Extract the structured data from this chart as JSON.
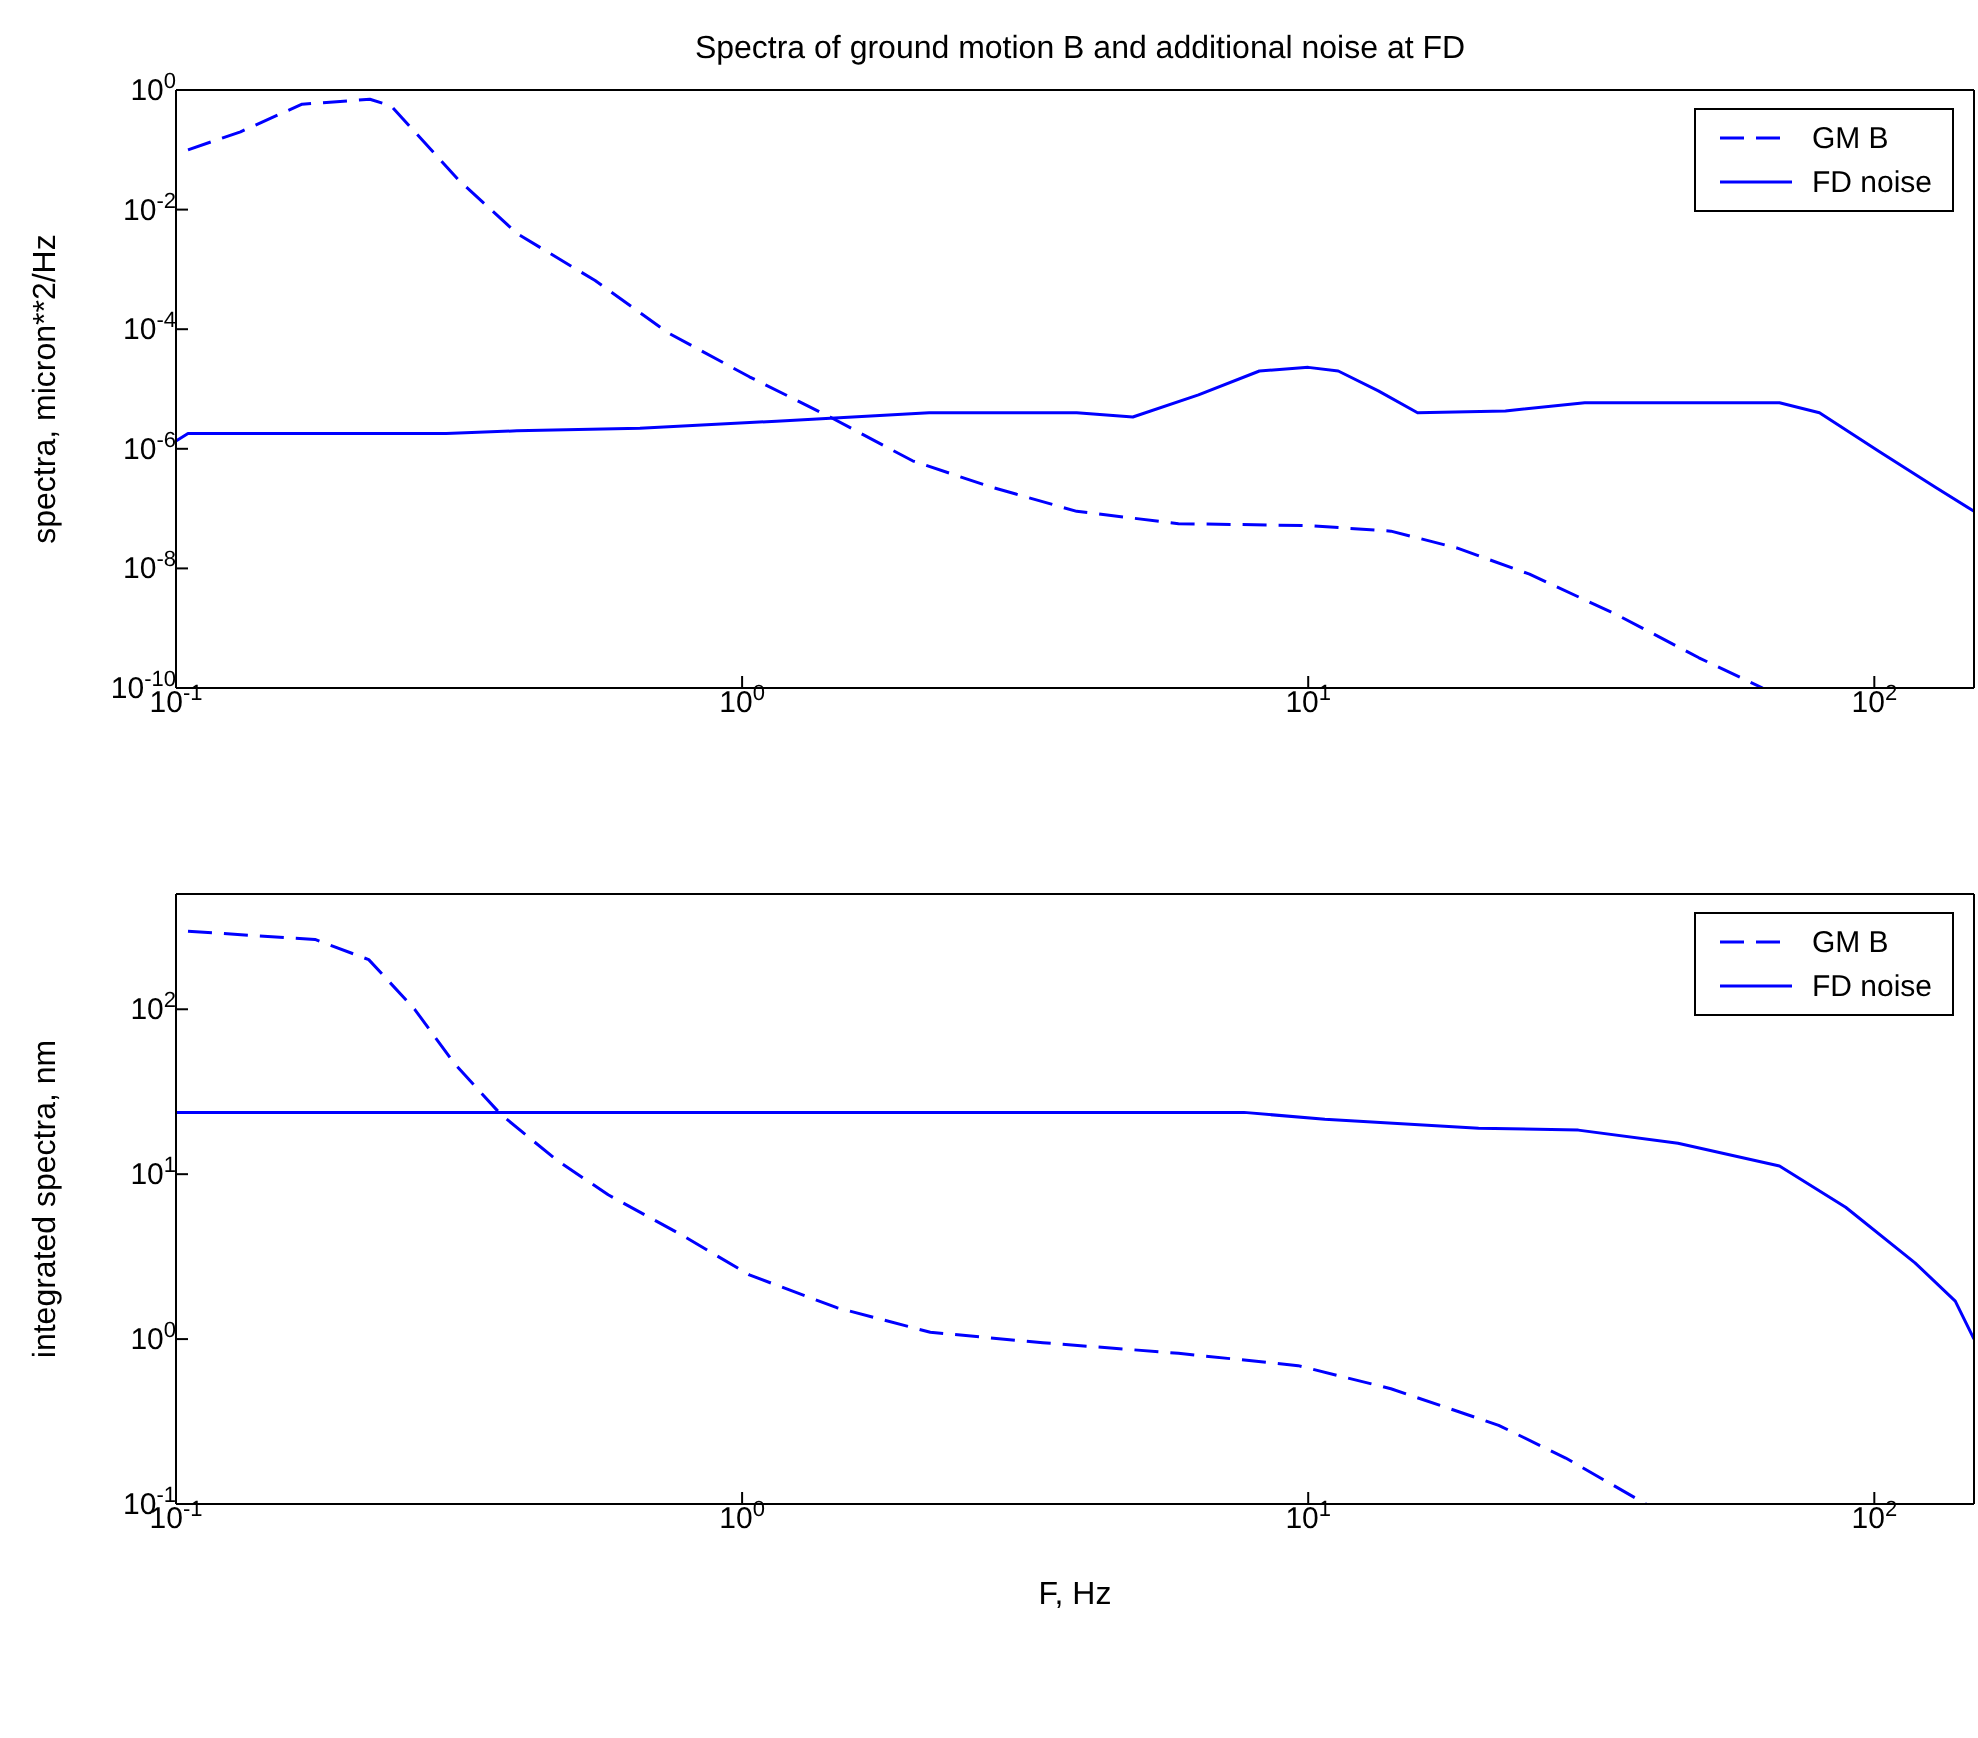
{
  "chart_data": [
    {
      "type": "line",
      "title": "Spectra of ground motion B and additional noise at FD",
      "ylabel": "spectra, micron**2/Hz",
      "log": "xy",
      "grid": false,
      "legend": "top right",
      "marker": "none",
      "xlim": [
        0.1,
        150
      ],
      "ylim": [
        1e-10,
        1
      ],
      "xticks": [
        {
          "value": 0.1,
          "label": "10$^{-1}$"
        },
        {
          "value": 1,
          "label": "10$^{0}$"
        },
        {
          "value": 10,
          "label": "10$^{1}$"
        },
        {
          "value": 100,
          "label": "10$^{2}$"
        }
      ],
      "yticks": [
        {
          "value": 1e-10,
          "label": "10$^{-10}$"
        },
        {
          "value": 1e-08,
          "label": "10$^{-8}$"
        },
        {
          "value": 1e-06,
          "label": "10$^{-6}$"
        },
        {
          "value": 0.0001,
          "label": "10$^{-4}$"
        },
        {
          "value": 0.01,
          "label": "10$^{-2}$"
        },
        {
          "value": 1,
          "label": "10$^{0}$"
        }
      ],
      "series": [
        {
          "name": "GM B",
          "color": "#0000ff",
          "line_style": "dashed",
          "x": [
            0.105,
            0.13,
            0.167,
            0.22,
            0.24,
            0.316,
            0.4,
            0.55,
            0.74,
            1.03,
            1.43,
            2.0,
            2.75,
            3.9,
            5.9,
            10,
            14,
            18.3,
            24.6,
            35,
            49,
            63.5
          ],
          "values": [
            0.1,
            0.2,
            0.58,
            0.7,
            0.54,
            0.031,
            0.004,
            0.00065,
            8.7e-05,
            1.6e-05,
            3.4e-06,
            6.3e-07,
            2.3e-07,
            9e-08,
            5.6e-08,
            5.2e-08,
            4.2e-08,
            2.2e-08,
            8e-09,
            1.7e-09,
            3.2e-10,
            1e-10
          ]
        },
        {
          "name": "FD noise",
          "color": "#0000ff",
          "line_style": "solid",
          "x": [
            0.1,
            0.105,
            0.3,
            0.4,
            0.66,
            1.15,
            2.14,
            3.9,
            4.9,
            6.4,
            8.2,
            10,
            11.3,
            13.3,
            15.6,
            22.3,
            30.8,
            68,
            80,
            102,
            128,
            150
          ],
          "values": [
            1.35e-06,
            1.8e-06,
            1.8e-06,
            2e-06,
            2.2e-06,
            2.9e-06,
            4e-06,
            4e-06,
            3.4e-06,
            8e-06,
            2e-05,
            2.3e-05,
            2e-05,
            9.3e-06,
            4e-06,
            4.3e-06,
            5.9e-06,
            5.9e-06,
            4e-06,
            9e-07,
            2.3e-07,
            9e-08
          ]
        }
      ]
    },
    {
      "type": "line",
      "xlabel": "F, Hz",
      "ylabel": "integrated spectra, nm",
      "log": "xy",
      "grid": false,
      "legend": "top right",
      "marker": "none",
      "xlim": [
        0.1,
        150
      ],
      "ylim": [
        0.1,
        500
      ],
      "xticks": [
        {
          "value": 0.1,
          "label": "10$^{-1}$"
        },
        {
          "value": 1,
          "label": "10$^{0}$"
        },
        {
          "value": 10,
          "label": "10$^{1}$"
        },
        {
          "value": 100,
          "label": "10$^{2}$"
        }
      ],
      "yticks": [
        {
          "value": 0.1,
          "label": "10$^{-1}$"
        },
        {
          "value": 1,
          "label": "10$^{0}$"
        },
        {
          "value": 10,
          "label": "10$^{1}$"
        },
        {
          "value": 100,
          "label": "10$^{2}$"
        }
      ],
      "series": [
        {
          "name": "GM B",
          "color": "#0000ff",
          "line_style": "dashed",
          "x": [
            0.105,
            0.176,
            0.219,
            0.264,
            0.31,
            0.375,
            0.47,
            0.58,
            0.78,
            1.03,
            1.47,
            2.15,
            3.4,
            5.9,
            9.6,
            14,
            21.7,
            28.5,
            39.5
          ],
          "values": [
            297,
            265,
            200,
            100,
            47,
            23,
            12.2,
            7.5,
            4.3,
            2.45,
            1.55,
            1.1,
            0.95,
            0.82,
            0.69,
            0.5,
            0.3,
            0.19,
            0.1
          ]
        },
        {
          "name": "FD noise",
          "color": "#0000ff",
          "line_style": "solid",
          "x": [
            0.1,
            7.7,
            10.7,
            20,
            30,
            45,
            68,
            89,
            118,
            139,
            150
          ],
          "values": [
            23.7,
            23.7,
            21.5,
            19,
            18.5,
            15.4,
            11.2,
            6.3,
            2.9,
            1.7,
            1.0
          ]
        }
      ]
    }
  ]
}
